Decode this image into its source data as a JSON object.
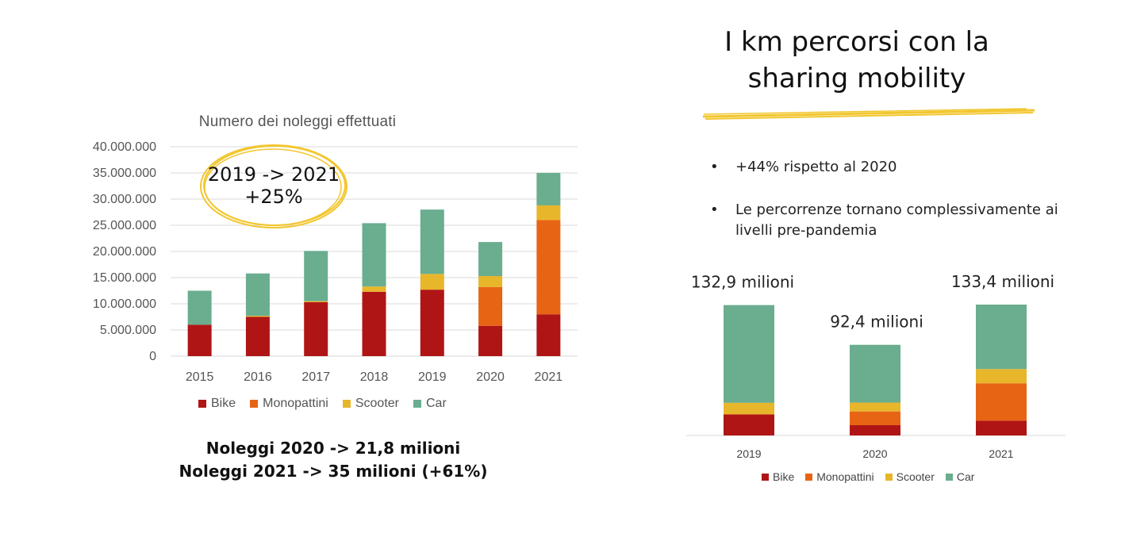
{
  "left": {
    "title": "Numero dei noleggi effettuati",
    "highlight_line1": "2019 -> 2021",
    "highlight_line2": "+25%",
    "summary_line1": "Noleggi 2020 -> 21,8 milioni",
    "summary_line2": "Noleggi 2021 -> 35 milioni (+61%)"
  },
  "right": {
    "title_line1": "I km percorsi con la",
    "title_line2": "sharing mobility",
    "bullets": [
      "+44% rispetto al 2020",
      "Le percorrenze tornano complessivamente ai livelli pre-pandemia"
    ]
  },
  "colors": {
    "Bike": "#b01515",
    "Monopattini": "#e86415",
    "Scooter": "#e8b62a",
    "Car": "#6aad8f",
    "highlight_ring": "#f2c62e",
    "underline": "#f2c62e"
  },
  "legend": [
    "Bike",
    "Monopattini",
    "Scooter",
    "Car"
  ],
  "chart_data": [
    {
      "type": "bar",
      "stacked": true,
      "title": "Numero dei noleggi effettuati",
      "categories": [
        "2015",
        "2016",
        "2017",
        "2018",
        "2019",
        "2020",
        "2021"
      ],
      "series": [
        {
          "name": "Bike",
          "values": [
            6000000,
            7500000,
            10300000,
            12300000,
            12700000,
            5800000,
            8000000
          ]
        },
        {
          "name": "Monopattini",
          "values": [
            0,
            0,
            0,
            0,
            0,
            7400000,
            18000000
          ]
        },
        {
          "name": "Scooter",
          "values": [
            0,
            200000,
            200000,
            1000000,
            3000000,
            2100000,
            2800000
          ]
        },
        {
          "name": "Car",
          "values": [
            6500000,
            8100000,
            9600000,
            12100000,
            12300000,
            6500000,
            6200000
          ]
        }
      ],
      "ylim": [
        0,
        40000000
      ],
      "yticks": [
        "0",
        "5.000.000",
        "10.000.000",
        "15.000.000",
        "20.000.000",
        "25.000.000",
        "30.000.000",
        "35.000.000",
        "40.000.000"
      ],
      "grid": true,
      "legend_position": "bottom"
    },
    {
      "type": "bar",
      "stacked": true,
      "categories": [
        "2019",
        "2020",
        "2021"
      ],
      "data_labels": [
        "132,9 milioni",
        "92,4 milioni",
        "133,4 milioni"
      ],
      "series": [
        {
          "name": "Bike",
          "values": [
            21.5,
            10.5,
            15.1
          ]
        },
        {
          "name": "Monopattini",
          "values": [
            0,
            14.0,
            38.1
          ]
        },
        {
          "name": "Scooter",
          "values": [
            11.8,
            9.0,
            14.5
          ]
        },
        {
          "name": "Car",
          "values": [
            99.6,
            58.9,
            65.7
          ]
        }
      ],
      "grid": false,
      "legend_position": "bottom"
    }
  ]
}
